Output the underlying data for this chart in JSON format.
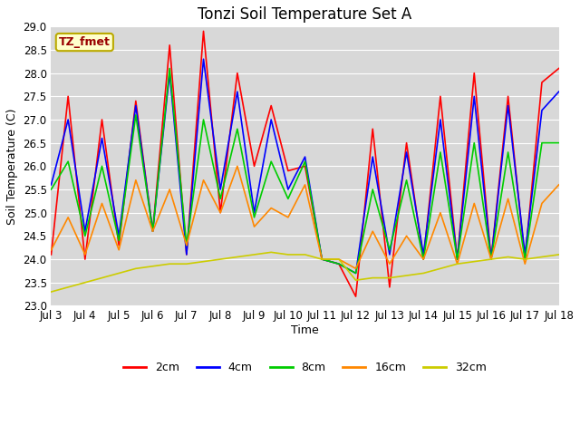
{
  "title": "Tonzi Soil Temperature Set A",
  "xlabel": "Time",
  "ylabel": "Soil Temperature (C)",
  "ylim": [
    23.0,
    29.0
  ],
  "yticks": [
    23.0,
    23.5,
    24.0,
    24.5,
    25.0,
    25.5,
    26.0,
    26.5,
    27.0,
    27.5,
    28.0,
    28.5,
    29.0
  ],
  "xtick_labels": [
    "Jul 3",
    "Jul 4",
    "Jul 5",
    "Jul 6",
    "Jul 7",
    "Jul 8",
    "Jul 9",
    "Jul 10",
    "Jul 11",
    "Jul 12",
    "Jul 13",
    "Jul 14",
    "Jul 15",
    "Jul 16",
    "Jul 17",
    "Jul 18"
  ],
  "annotation_text": "TZ_fmet",
  "annotation_color": "#990000",
  "annotation_bg": "#ffffcc",
  "annotation_border": "#bbaa00",
  "series_names": [
    "2cm",
    "4cm",
    "8cm",
    "16cm",
    "32cm"
  ],
  "series_colors": [
    "#ff0000",
    "#0000ff",
    "#00cc00",
    "#ff8800",
    "#cccc00"
  ],
  "series_linewidth": 1.2,
  "x_2cm": [
    0,
    1,
    2,
    3,
    4,
    5,
    6,
    7,
    8,
    9,
    10,
    11,
    12,
    13,
    14,
    15,
    16,
    17,
    18,
    19,
    20,
    21,
    22,
    23,
    24,
    25,
    26,
    27,
    28,
    29,
    30
  ],
  "y_2cm": [
    24.1,
    27.5,
    24.0,
    27.0,
    24.3,
    27.4,
    24.6,
    28.6,
    24.1,
    28.9,
    25.0,
    28.0,
    26.0,
    27.3,
    25.9,
    26.0,
    24.0,
    23.9,
    23.2,
    26.8,
    23.4,
    26.5,
    24.0,
    27.5,
    24.0,
    28.0,
    24.0,
    27.5,
    24.0,
    27.8,
    28.1
  ],
  "y_4cm": [
    25.6,
    27.0,
    24.6,
    26.6,
    24.5,
    27.3,
    24.6,
    28.0,
    24.1,
    28.3,
    25.5,
    27.6,
    25.0,
    27.0,
    25.5,
    26.2,
    24.0,
    23.9,
    23.7,
    26.2,
    24.1,
    26.3,
    24.1,
    27.0,
    24.0,
    27.5,
    24.0,
    27.3,
    24.1,
    27.2,
    27.6
  ],
  "y_8cm": [
    25.5,
    26.1,
    24.5,
    26.0,
    24.4,
    27.1,
    24.6,
    28.1,
    24.3,
    27.0,
    25.3,
    26.8,
    24.9,
    26.1,
    25.3,
    26.1,
    24.0,
    23.9,
    23.7,
    25.5,
    24.2,
    25.7,
    24.0,
    26.3,
    24.0,
    26.5,
    24.0,
    26.3,
    24.0,
    26.5,
    26.5
  ],
  "y_16cm": [
    24.2,
    24.9,
    24.1,
    25.2,
    24.2,
    25.7,
    24.6,
    25.5,
    24.3,
    25.7,
    25.0,
    26.0,
    24.7,
    25.1,
    24.9,
    25.6,
    24.0,
    24.0,
    23.8,
    24.6,
    23.9,
    24.5,
    24.0,
    25.0,
    23.9,
    25.2,
    24.0,
    25.3,
    23.9,
    25.2,
    25.6
  ],
  "y_32cm": [
    23.3,
    23.4,
    23.5,
    23.6,
    23.7,
    23.8,
    23.85,
    23.9,
    23.9,
    23.95,
    24.0,
    24.05,
    24.1,
    24.15,
    24.1,
    24.1,
    24.0,
    24.0,
    23.55,
    23.6,
    23.6,
    23.65,
    23.7,
    23.8,
    23.9,
    23.95,
    24.0,
    24.05,
    24.0,
    24.05,
    24.1
  ],
  "figure_bg": "#ffffff",
  "plot_bg": "#d8d8d8",
  "grid_color": "#ffffff",
  "title_fontsize": 12,
  "label_fontsize": 9,
  "tick_fontsize": 8.5,
  "legend_fontsize": 9
}
